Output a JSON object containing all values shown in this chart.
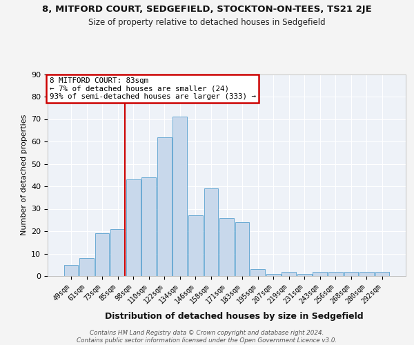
{
  "title_main": "8, MITFORD COURT, SEDGEFIELD, STOCKTON-ON-TEES, TS21 2JE",
  "title_sub": "Size of property relative to detached houses in Sedgefield",
  "xlabel": "Distribution of detached houses by size in Sedgefield",
  "ylabel": "Number of detached properties",
  "categories": [
    "49sqm",
    "61sqm",
    "73sqm",
    "85sqm",
    "98sqm",
    "110sqm",
    "122sqm",
    "134sqm",
    "146sqm",
    "158sqm",
    "171sqm",
    "183sqm",
    "195sqm",
    "207sqm",
    "219sqm",
    "231sqm",
    "243sqm",
    "256sqm",
    "268sqm",
    "280sqm",
    "292sqm"
  ],
  "values": [
    5,
    8,
    19,
    21,
    43,
    44,
    62,
    71,
    27,
    39,
    26,
    24,
    3,
    1,
    2,
    1,
    2,
    2,
    2,
    2,
    2
  ],
  "bar_color": "#c8d8eb",
  "bar_edge_color": "#6aaad4",
  "vline_x_index": 3,
  "vline_color": "#cc0000",
  "annotation_line1": "8 MITFORD COURT: 83sqm",
  "annotation_line2": "← 7% of detached houses are smaller (24)",
  "annotation_line3": "93% of semi-detached houses are larger (333) →",
  "annotation_box_color": "#cc0000",
  "ylim": [
    0,
    90
  ],
  "yticks": [
    0,
    10,
    20,
    30,
    40,
    50,
    60,
    70,
    80,
    90
  ],
  "bg_color": "#eef2f8",
  "grid_color": "#ffffff",
  "footer_line1": "Contains HM Land Registry data © Crown copyright and database right 2024.",
  "footer_line2": "Contains public sector information licensed under the Open Government Licence v3.0."
}
